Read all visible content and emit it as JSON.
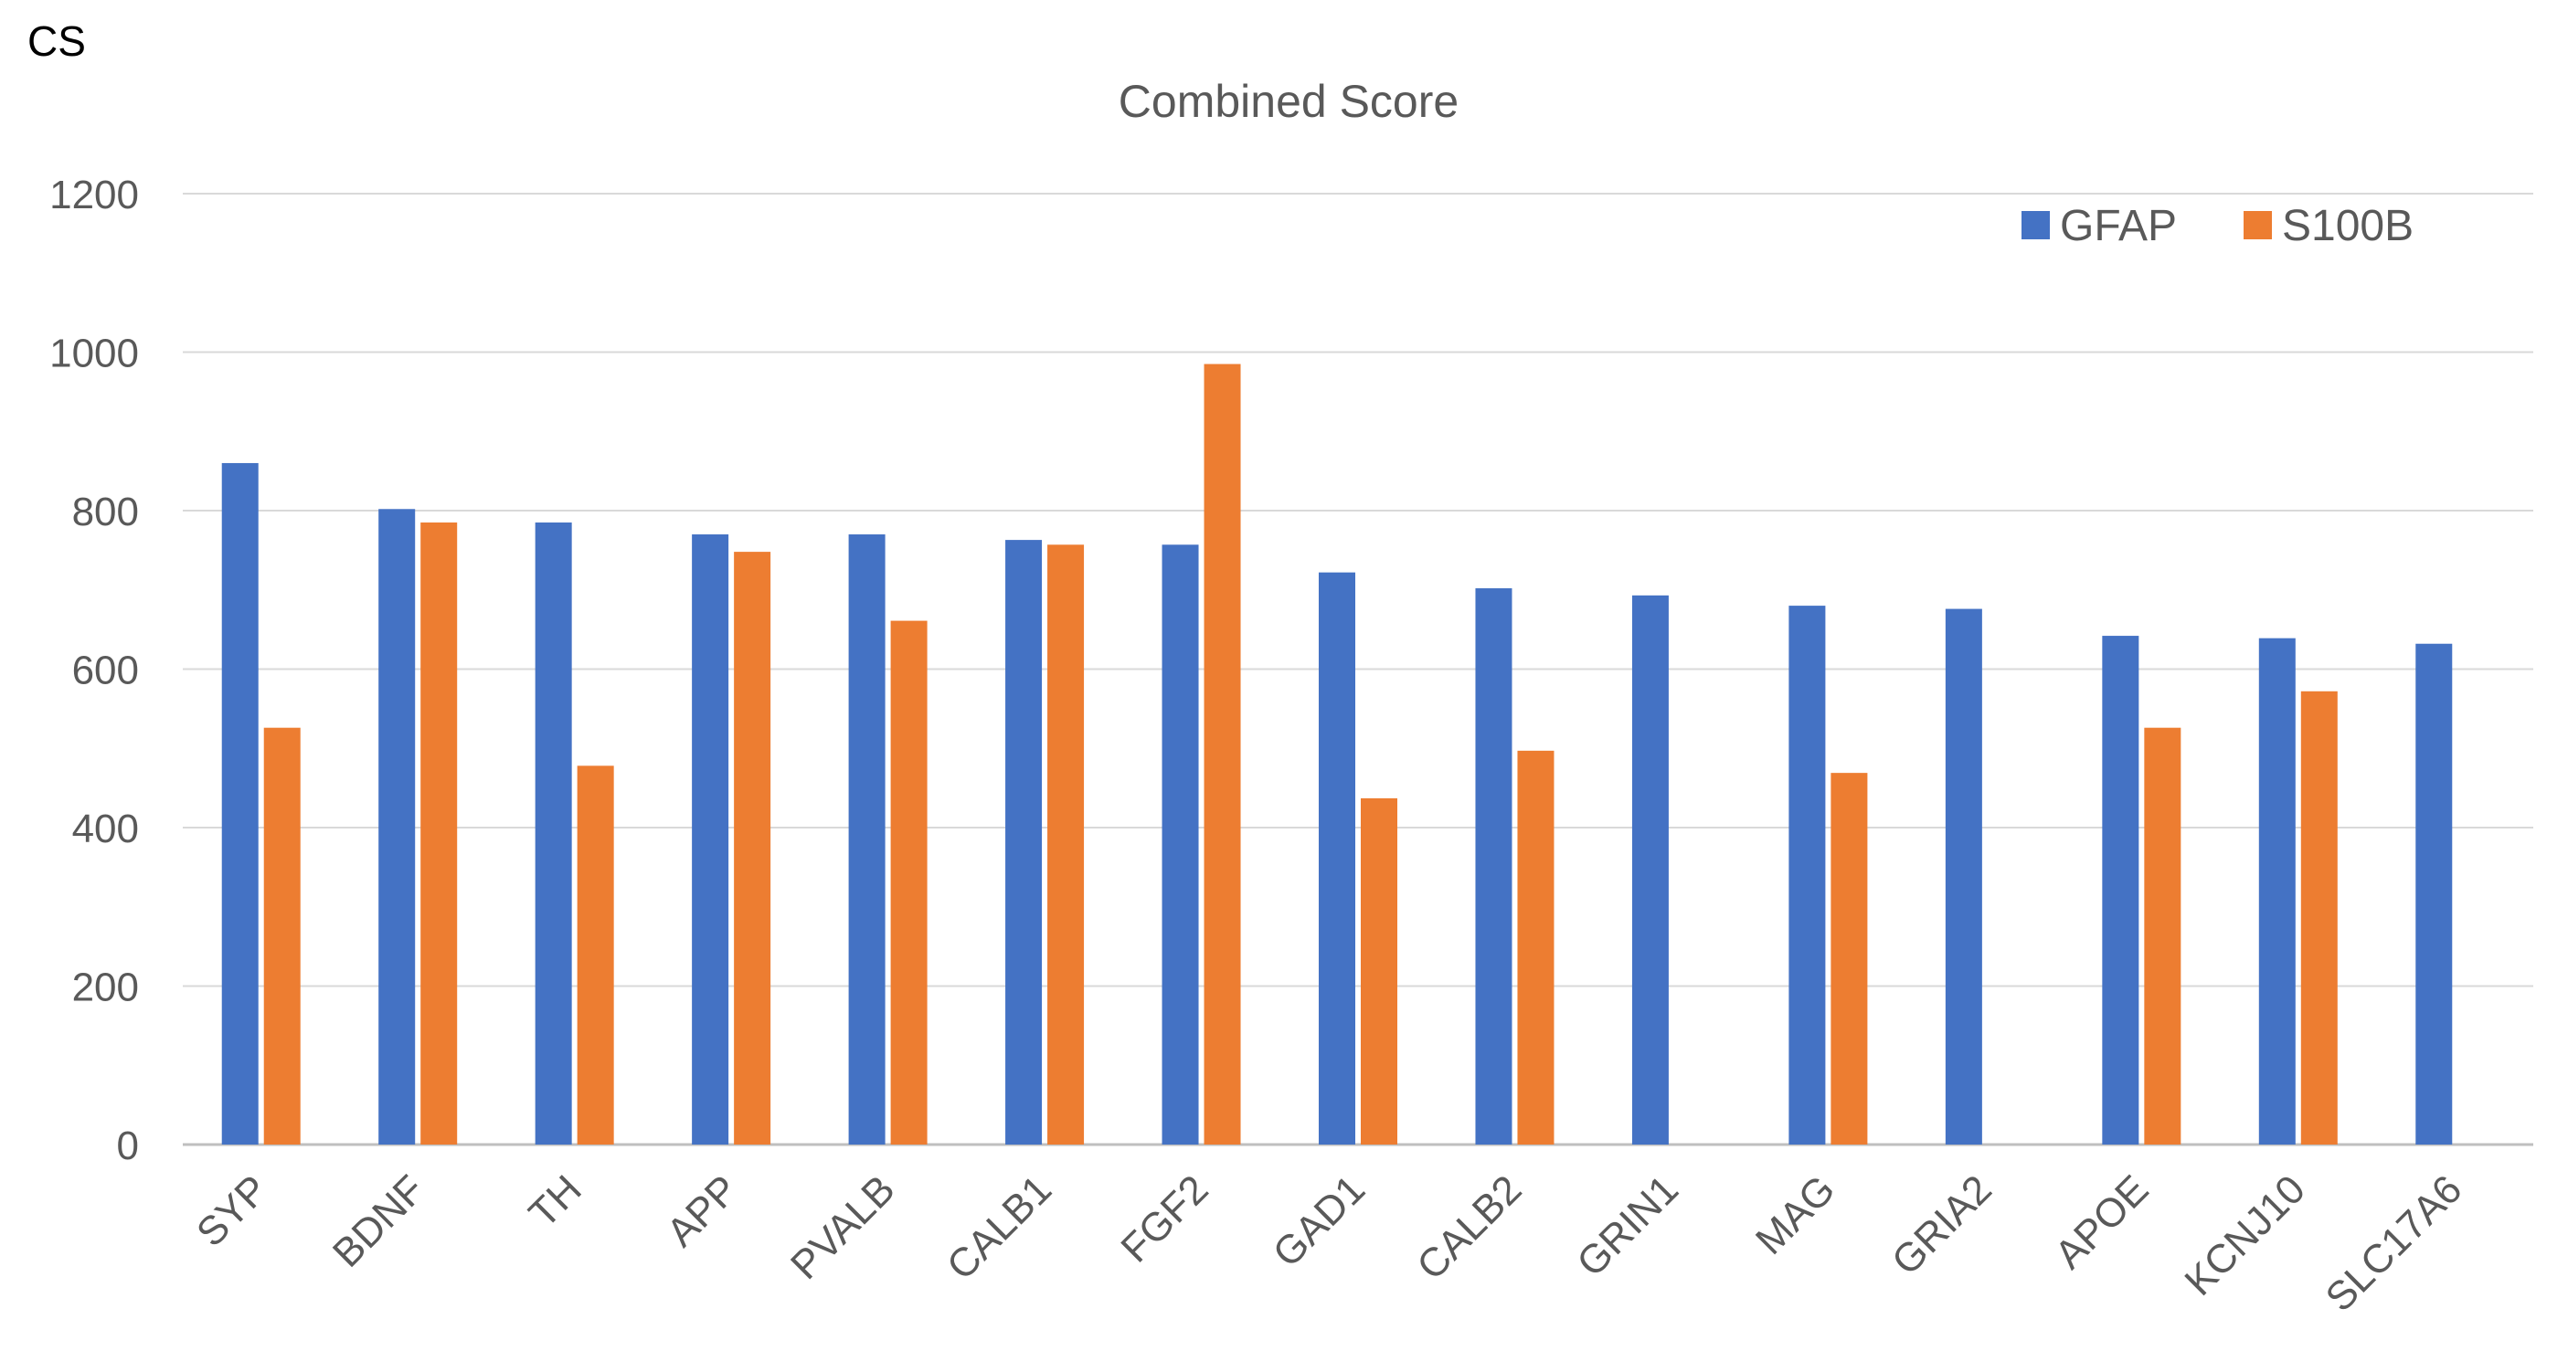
{
  "panel_label": "CS",
  "chart_data": {
    "type": "bar",
    "title": "Combined Score",
    "xlabel": "",
    "ylabel": "",
    "ylim": [
      0,
      1200
    ],
    "yticks": [
      0,
      200,
      400,
      600,
      800,
      1000,
      1200
    ],
    "grid": true,
    "legend_position": "top-right",
    "categories": [
      "SYP",
      "BDNF",
      "TH",
      "APP",
      "PVALB",
      "CALB1",
      "FGF2",
      "GAD1",
      "CALB2",
      "GRIN1",
      "MAG",
      "GRIA2",
      "APOE",
      "KCNJ10",
      "SLC17A6"
    ],
    "series": [
      {
        "name": "GFAP",
        "color": "#4472C4",
        "values": [
          860,
          802,
          785,
          770,
          770,
          763,
          757,
          722,
          702,
          693,
          680,
          676,
          642,
          639,
          632
        ]
      },
      {
        "name": "S100B",
        "color": "#ED7D31",
        "values": [
          526,
          785,
          478,
          748,
          661,
          757,
          985,
          437,
          497,
          null,
          469,
          null,
          526,
          572,
          null
        ]
      }
    ]
  }
}
